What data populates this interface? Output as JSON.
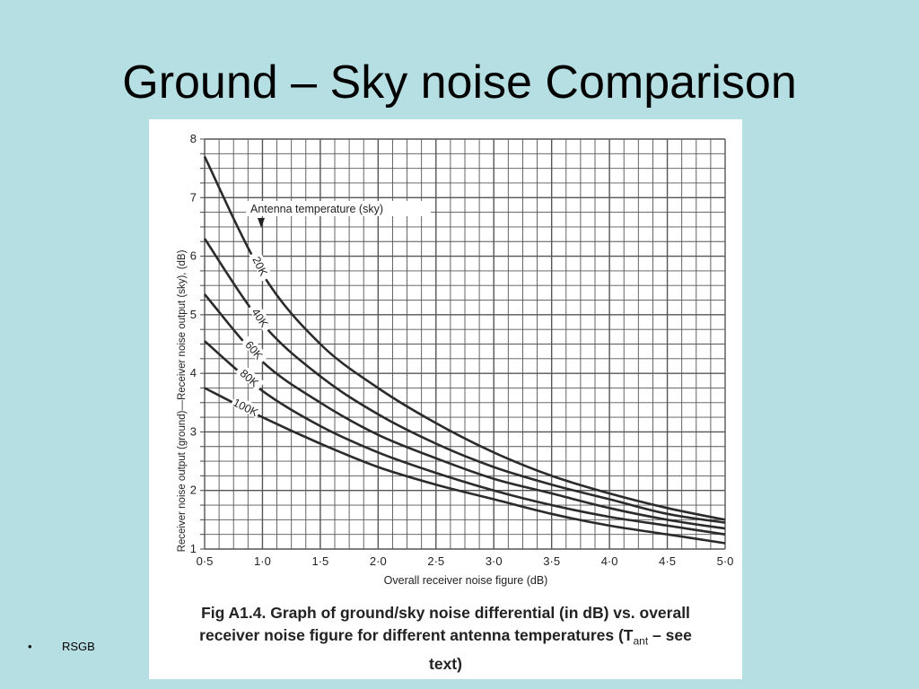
{
  "slide": {
    "title": "Ground – Sky noise Comparison",
    "bullet_symbol": "•",
    "bullet_text": "RSGB"
  },
  "caption": {
    "line1": "Fig A1.4. Graph of ground/sky noise differential (in dB) vs. overall",
    "line2_pre": "receiver noise figure for different antenna temperatures (T",
    "line2_sub": "ant",
    "line2_post": " – see",
    "line3": "text)"
  },
  "chart_data": {
    "type": "line",
    "xlabel": "Overall receiver noise figure (dB)",
    "ylabel": "Receiver noise output (ground)—Receiver noise output (sky), (dB)",
    "xlim": [
      0.5,
      5.0
    ],
    "ylim": [
      1,
      8
    ],
    "x_tick_labels": [
      "0·5",
      "1·0",
      "1·5",
      "2·0",
      "2·5",
      "3·0",
      "3·5",
      "4·0",
      "4·5",
      "5·0"
    ],
    "y_tick_labels": [
      "1",
      "2",
      "3",
      "4",
      "5",
      "6",
      "7",
      "8"
    ],
    "grid": true,
    "legend_title": "Antenna temperature (sky)",
    "x": [
      0.5,
      1.0,
      1.5,
      2.0,
      2.5,
      3.0,
      3.5,
      4.0,
      4.5,
      5.0
    ],
    "series": [
      {
        "name": "20K",
        "values": [
          7.7,
          5.7,
          4.5,
          3.75,
          3.15,
          2.65,
          2.25,
          1.95,
          1.7,
          1.5
        ]
      },
      {
        "name": "40K",
        "values": [
          6.3,
          4.85,
          3.95,
          3.3,
          2.8,
          2.4,
          2.1,
          1.85,
          1.6,
          1.45
        ]
      },
      {
        "name": "60K",
        "values": [
          5.35,
          4.2,
          3.5,
          2.95,
          2.55,
          2.2,
          1.95,
          1.7,
          1.5,
          1.35
        ]
      },
      {
        "name": "80K",
        "values": [
          4.55,
          3.7,
          3.1,
          2.65,
          2.3,
          2.0,
          1.75,
          1.55,
          1.4,
          1.25
        ]
      },
      {
        "name": "100K",
        "values": [
          3.75,
          3.25,
          2.8,
          2.4,
          2.1,
          1.85,
          1.6,
          1.4,
          1.25,
          1.1
        ]
      }
    ]
  }
}
